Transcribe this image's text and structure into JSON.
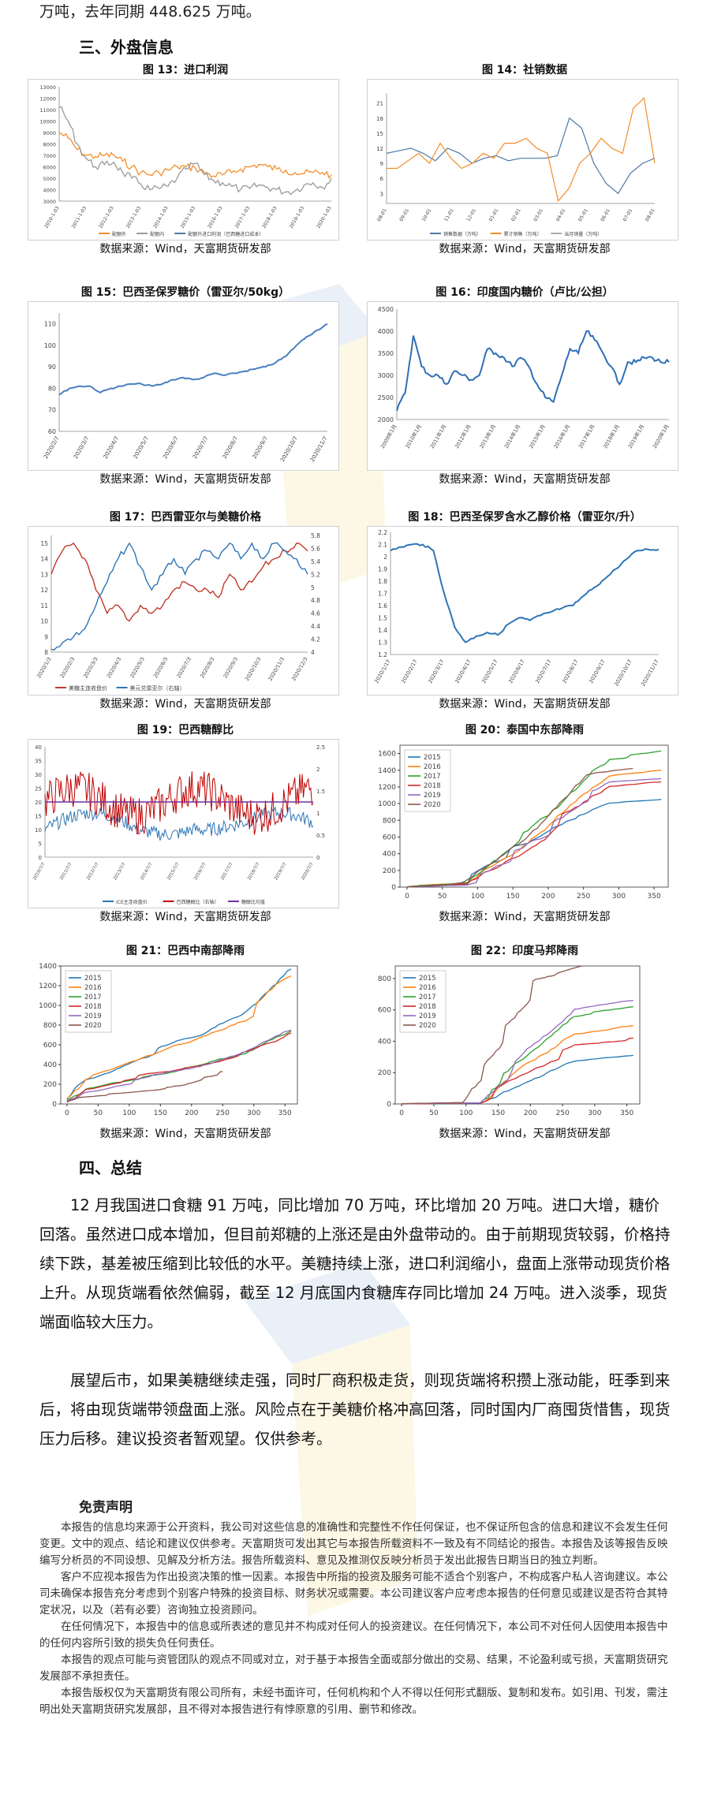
{
  "intro_line": "万吨，去年同期 448.625 万吨。",
  "section3": "三、外盘信息",
  "section4": "四、总结",
  "source": "数据来源：Wind，天富期货研发部",
  "figures": [
    {
      "title": "图 13：进口利润"
    },
    {
      "title": "图 14：社销数据"
    },
    {
      "title": "图 15：巴西圣保罗糖价（雷亚尔/50kg）"
    },
    {
      "title": "图 16：印度国内糖价（卢比/公担）"
    },
    {
      "title": "图 17：巴西雷亚尔与美糖价格"
    },
    {
      "title": "图 18：巴西圣保罗含水乙醇价格（雷亚尔/升）"
    },
    {
      "title": "图 19：巴西糖醇比"
    },
    {
      "title": "图 20：泰国中东部降雨"
    },
    {
      "title": "图 21：巴西中南部降雨"
    },
    {
      "title": "图 22：印度马邦降雨"
    }
  ],
  "chart_data": [
    {
      "id": "fig13",
      "type": "line",
      "yticks": [
        3000,
        4000,
        5000,
        6000,
        7000,
        8000,
        9000,
        10000,
        11000,
        12000,
        13000
      ],
      "xticks": [
        "2010-1-03",
        "2011-1-03",
        "2012-1-03",
        "2013-1-03",
        "2014-1-03",
        "2015-1-03",
        "2016-1-03",
        "2017-1-03",
        "2018-1-03",
        "2019-1-03",
        "2020-1-03"
      ],
      "ylim": [
        3000,
        13000
      ],
      "series": [
        {
          "color": "#f28e2b",
          "values": [
            9000,
            8500,
            7500,
            7000,
            6900,
            7000,
            7000,
            6500,
            6000,
            5500,
            5300,
            5500,
            5700,
            6000,
            6000,
            5900,
            5500,
            5200,
            5300,
            5500,
            5800,
            6000,
            6200,
            6000,
            5800,
            5700,
            5500,
            5400,
            5500,
            5500,
            5300
          ]
        },
        {
          "color": "#999999",
          "values": [
            11200,
            10000,
            8000,
            6700,
            6000,
            6200,
            6400,
            5500,
            5000,
            4500,
            4000,
            4100,
            4300,
            5000,
            5800,
            6300,
            5300,
            4800,
            4600,
            4300,
            4000,
            4100,
            4400,
            4200,
            4000,
            3800,
            3900,
            4400,
            4600,
            4200,
            5000
          ]
        },
        {
          "color": "#4e79a7",
          "values": [
            null
          ]
        }
      ],
      "legend": [
        "配额外",
        "配额内",
        "配额外进口利润（巴西糖进口成本）"
      ]
    },
    {
      "id": "fig14",
      "type": "line",
      "ylim": [
        1,
        23
      ],
      "yticks": [
        3,
        6,
        9,
        12,
        15,
        18,
        21
      ],
      "xticks": [
        "08-01",
        "09-01",
        "10-01",
        "11-01",
        "12-01",
        "01-01",
        "02-01",
        "03-01",
        "04-01",
        "05-01",
        "06-01",
        "07-01",
        "08-01"
      ],
      "series": [
        {
          "color": "#4e79a7",
          "values": [
            11,
            11.5,
            12,
            11,
            9.5,
            12,
            11,
            9,
            10,
            10.5,
            9.5,
            10,
            10,
            10,
            10.5,
            18,
            16,
            9,
            5,
            3,
            7,
            9,
            10
          ]
        },
        {
          "color": "#f28e2b",
          "values": [
            8,
            8,
            9.5,
            11,
            9,
            13,
            10,
            8,
            9,
            11,
            10,
            13,
            13,
            14,
            12,
            11,
            1.5,
            4,
            9,
            11,
            14,
            12,
            11,
            20,
            22,
            9
          ]
        }
      ],
      "legend": [
        "销售数据（万吨）",
        "累计销售（万吨）",
        "当月销量（万吨）"
      ]
    },
    {
      "id": "fig15",
      "type": "line",
      "ylim": [
        60,
        115
      ],
      "yticks": [
        60,
        70,
        80,
        90,
        100,
        110
      ],
      "xticks": [
        "2020/2/7",
        "2020/3/7",
        "2020/4/7",
        "2020/5/7",
        "2020/6/7",
        "2020/7/7",
        "2020/8/7",
        "2020/9/7",
        "2020/10/7",
        "2020/11/7"
      ],
      "series": [
        {
          "color": "#4a7fc0",
          "values": [
            77,
            80,
            81,
            81,
            78,
            80,
            81,
            82,
            82,
            81,
            82,
            84,
            85,
            84,
            85,
            87,
            86,
            87,
            88,
            89,
            90,
            92,
            95,
            100,
            104,
            107,
            110
          ]
        }
      ]
    },
    {
      "id": "fig16",
      "type": "line",
      "ylim": [
        2000,
        4500
      ],
      "yticks": [
        2000,
        2500,
        3000,
        3500,
        4000,
        4500
      ],
      "xticks": [
        "2009年1月",
        "2010年1月",
        "2011年1月",
        "2012年1月",
        "2013年1月",
        "2014年1月",
        "2015年1月",
        "2016年1月",
        "2017年1月",
        "2018年1月",
        "2019年1月",
        "2020年1月"
      ],
      "series": [
        {
          "color": "#2e6fb7",
          "values": [
            2200,
            2600,
            3900,
            3200,
            3000,
            3000,
            2800,
            3100,
            3000,
            2900,
            3000,
            3600,
            3500,
            3400,
            3200,
            3400,
            3200,
            2800,
            2500,
            2400,
            3000,
            3600,
            3500,
            4000,
            3800,
            3500,
            3200,
            2800,
            3300,
            3300,
            3400,
            3400,
            3300,
            3300
          ]
        }
      ]
    },
    {
      "id": "fig17",
      "type": "line",
      "ylim": [
        8,
        15.5
      ],
      "yticks": [
        8,
        9,
        10,
        11,
        12,
        13,
        14,
        15
      ],
      "y2ticks": [
        4,
        4.2,
        4.4,
        4.6,
        4.8,
        5,
        5.2,
        5.4,
        5.6,
        5.8
      ],
      "xticks": [
        "2020/1/3",
        "2020/2/3",
        "2020/3/3",
        "2020/4/3",
        "2020/5/3",
        "2020/6/3",
        "2020/7/3",
        "2020/8/3",
        "2020/9/3",
        "2020/10/3",
        "2020/11/3",
        "2020/12/3"
      ],
      "series": [
        {
          "color": "#c0392b",
          "values": [
            13,
            14.5,
            15,
            14,
            12,
            10.5,
            11,
            10,
            11,
            10.5,
            11,
            12,
            12.5,
            12,
            12,
            11.5,
            13,
            12,
            12.5,
            13.5,
            14,
            14.5,
            15,
            14.5
          ]
        },
        {
          "color": "#2e75b6",
          "values": [
            8.2,
            8.6,
            9,
            9.5,
            11,
            12.5,
            14,
            15,
            13.5,
            12,
            13,
            14,
            13,
            14,
            14.5,
            14,
            15,
            14,
            15,
            14,
            15,
            14.5,
            14,
            13
          ]
        }
      ],
      "legend": [
        "美糖主连收盘价",
        "美元兑雷亚尔（右轴）"
      ]
    },
    {
      "id": "fig18",
      "type": "line",
      "ylim": [
        1.2,
        2.2
      ],
      "yticks": [
        1.2,
        1.3,
        1.4,
        1.5,
        1.6,
        1.7,
        1.8,
        1.9,
        2.0,
        2.1,
        2.2
      ],
      "xticks": [
        "2020/1/17",
        "2020/2/17",
        "2020/3/17",
        "2020/4/17",
        "2020/5/17",
        "2020/6/17",
        "2020/7/17",
        "2020/8/17",
        "2020/9/17",
        "2020/10/17",
        "2020/11/17"
      ],
      "series": [
        {
          "color": "#2e75b6",
          "values": [
            2.05,
            2.08,
            2.1,
            2.1,
            2.05,
            1.7,
            1.42,
            1.3,
            1.35,
            1.38,
            1.36,
            1.45,
            1.5,
            1.48,
            1.52,
            1.55,
            1.58,
            1.6,
            1.68,
            1.75,
            1.82,
            1.9,
            1.98,
            2.05,
            2.06,
            2.06
          ]
        }
      ]
    },
    {
      "id": "fig19",
      "type": "line",
      "ylim": [
        0,
        40
      ],
      "yticks": [
        0,
        5,
        10,
        15,
        20,
        25,
        30,
        35,
        40
      ],
      "y2ticks": [
        0,
        0.5,
        1,
        1.5,
        2,
        2.5
      ],
      "legend": [
        "ICE主连收盘价",
        "巴西糖醇比（右轴）",
        "糖醇比均值"
      ]
    },
    {
      "id": "fig20",
      "type": "line",
      "ylim": [
        0,
        1700
      ],
      "yticks": [
        0,
        200,
        400,
        600,
        800,
        1000,
        1200,
        1400,
        1600
      ],
      "xticks": [
        0,
        50,
        100,
        150,
        200,
        250,
        300,
        350
      ],
      "series": [
        {
          "name": "2015",
          "color": "#1f77b4",
          "final": 1050
        },
        {
          "name": "2016",
          "color": "#ff7f0e",
          "final": 1400
        },
        {
          "name": "2017",
          "color": "#2ca02c",
          "final": 1630
        },
        {
          "name": "2018",
          "color": "#d62728",
          "final": 1260
        },
        {
          "name": "2019",
          "color": "#9467bd",
          "final": 1300
        },
        {
          "name": "2020",
          "color": "#8c564b",
          "final": 1420
        }
      ]
    },
    {
      "id": "fig21",
      "type": "line",
      "ylim": [
        0,
        1400
      ],
      "yticks": [
        0,
        200,
        400,
        600,
        800,
        1000,
        1200,
        1400
      ],
      "xticks": [
        0,
        50,
        100,
        150,
        200,
        250,
        300,
        350
      ],
      "series": [
        {
          "name": "2015",
          "color": "#1f77b4",
          "final": 1370
        },
        {
          "name": "2016",
          "color": "#ff7f0e",
          "final": 1300
        },
        {
          "name": "2017",
          "color": "#2ca02c",
          "final": 740
        },
        {
          "name": "2018",
          "color": "#d62728",
          "final": 720
        },
        {
          "name": "2019",
          "color": "#9467bd",
          "final": 750
        },
        {
          "name": "2020",
          "color": "#8c564b",
          "final": 330
        }
      ]
    },
    {
      "id": "fig22",
      "type": "line",
      "ylim": [
        0,
        880
      ],
      "yticks": [
        0,
        200,
        400,
        600,
        800
      ],
      "xticks": [
        0,
        50,
        100,
        150,
        200,
        250,
        300,
        350
      ],
      "series": [
        {
          "name": "2015",
          "color": "#1f77b4",
          "final": 310
        },
        {
          "name": "2016",
          "color": "#ff7f0e",
          "final": 500
        },
        {
          "name": "2017",
          "color": "#2ca02c",
          "final": 620
        },
        {
          "name": "2018",
          "color": "#d62728",
          "final": 420
        },
        {
          "name": "2019",
          "color": "#9467bd",
          "final": 660
        },
        {
          "name": "2020",
          "color": "#8c564b",
          "final": 880
        }
      ]
    }
  ],
  "summary": [
    "12 月我国进口食糖 91 万吨，同比增加 70 万吨，环比增加 20 万吨。进口大增，糖价回落。虽然进口成本增加，但目前郑糖的上涨还是由外盘带动的。由于前期现货较弱，价格持续下跌，基差被压缩到比较低的水平。美糖持续上涨，进口利润缩小，盘面上涨带动现货价格上升。从现货端看依然偏弱，截至 12 月底国内食糖库存同比增加 24 万吨。进入淡季，现货端面临较大压力。",
    "展望后市，如果美糖继续走强，同时厂商积极走货，则现货端将积攒上涨动能，旺季到来后，将由现货端带领盘面上涨。风险点在于美糖价格冲高回落，同时国内厂商囤货惜售，现货压力后移。建议投资者暂观望。仅供参考。"
  ],
  "disclaimer_title": "免责声明",
  "disclaimer": [
    "本报告的信息均来源于公开资料，我公司对这些信息的准确性和完整性不作任何保证，也不保证所包含的信息和建议不会发生任何变更。文中的观点、结论和建议仅供参考。天富期货可发出其它与本报告所载资料不一致及有不同结论的报告。本报告及该等报告反映编写分析员的不同设想、见解及分析方法。报告所载资料、意见及推测仅反映分析员于发出此报告日期当日的独立判断。",
    "客户不应视本报告为作出投资决策的惟一因素。本报告中所指的投资及服务可能不适合个别客户，不构成客户私人咨询建议。本公司未确保本报告充分考虑到个别客户特殊的投资目标、财务状况或需要。本公司建议客户应考虑本报告的任何意见或建议是否符合其特定状况，以及（若有必要）咨询独立投资顾问。",
    "在任何情况下，本报告中的信息或所表述的意见并不构成对任何人的投资建议。在任何情况下，本公司不对任何人因使用本报告中的任何内容所引致的损失负任何责任。",
    "本报告的观点可能与资管团队的观点不同或对立，对于基于本报告全面或部分做出的交易、结果，不论盈利或亏损，天富期货研究发展部不承担责任。",
    "本报告版权仅为天富期货有限公司所有，未经书面许可，任何机构和个人不得以任何形式翻版、复制和发布。如引用、刊发，需注明出处天富期货研究发展部，且不得对本报告进行有悖原意的引用、删节和修改。"
  ]
}
